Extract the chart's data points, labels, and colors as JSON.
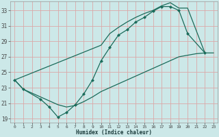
{
  "bg_color": "#cce8e8",
  "grid_color": "#dba8a8",
  "line_color": "#1a6b5a",
  "xlabel": "Humidex (Indice chaleur)",
  "xlim": [
    -0.5,
    23.5
  ],
  "ylim": [
    18.5,
    34.2
  ],
  "xticks": [
    0,
    1,
    2,
    3,
    4,
    5,
    6,
    7,
    8,
    9,
    10,
    11,
    12,
    13,
    14,
    15,
    16,
    17,
    18,
    19,
    20,
    21,
    22,
    23
  ],
  "yticks": [
    19,
    21,
    23,
    25,
    27,
    29,
    31,
    33
  ],
  "upper_x": [
    0,
    10,
    11,
    12,
    13,
    14,
    15,
    16,
    17,
    18,
    19,
    20,
    22
  ],
  "upper_y": [
    24.0,
    28.5,
    30.0,
    30.8,
    31.5,
    32.1,
    32.6,
    33.0,
    33.6,
    34.0,
    33.3,
    33.3,
    27.5
  ],
  "mid_x": [
    0,
    1,
    3,
    4,
    5,
    6,
    7,
    8,
    9,
    10,
    11,
    12,
    13,
    14,
    15,
    16,
    17,
    18,
    19,
    20,
    22
  ],
  "mid_y": [
    24.0,
    22.8,
    21.5,
    20.5,
    19.2,
    19.8,
    20.8,
    22.2,
    24.0,
    26.5,
    28.2,
    29.8,
    30.5,
    31.5,
    32.1,
    32.9,
    33.5,
    33.5,
    33.0,
    30.0,
    27.5
  ],
  "base_x": [
    0,
    1,
    2,
    3,
    4,
    5,
    6,
    7,
    8,
    9,
    10,
    11,
    12,
    13,
    14,
    15,
    16,
    17,
    18,
    19,
    20,
    21,
    22,
    23
  ],
  "base_y": [
    24.0,
    22.8,
    22.3,
    21.8,
    21.3,
    20.8,
    20.5,
    20.7,
    21.2,
    21.8,
    22.5,
    23.0,
    23.5,
    24.0,
    24.5,
    25.0,
    25.5,
    26.0,
    26.5,
    27.0,
    27.2,
    27.4,
    27.5,
    27.5
  ],
  "marker": "D",
  "markersize": 2.5,
  "linewidth": 0.9
}
